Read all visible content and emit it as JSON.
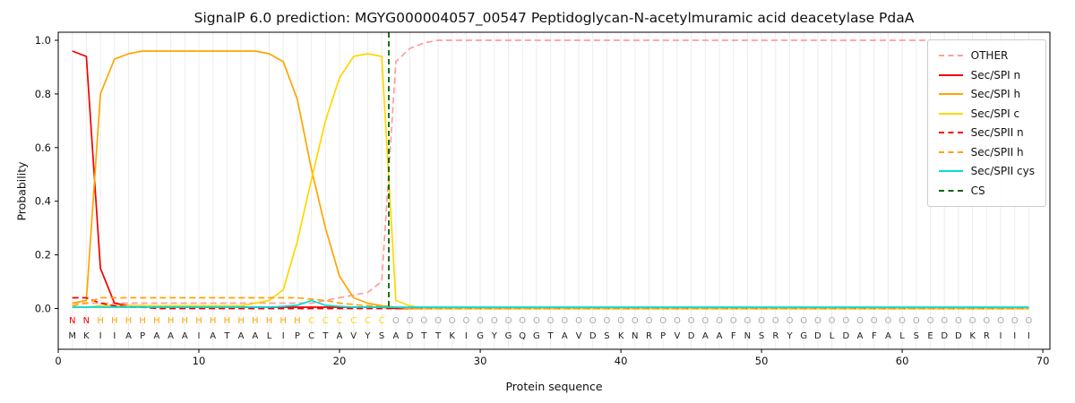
{
  "chart_data": {
    "type": "line",
    "title": "SignalP 6.0 prediction: MGYG000004057_00547 Peptidoglycan-N-acetylmuramic acid deacetylase PdaA",
    "xlabel": "Protein sequence",
    "ylabel": "Probability",
    "xlim": [
      0,
      70.5
    ],
    "ylim": [
      -0.152,
      1.03
    ],
    "xticks": [
      0,
      10,
      20,
      30,
      40,
      50,
      60,
      70
    ],
    "yticks": [
      0,
      0.2,
      0.4,
      0.6,
      0.8,
      1.0
    ],
    "ytick_labels": [
      "0.0",
      "0.2",
      "0.4",
      "0.6",
      "0.8",
      "1.0"
    ],
    "grid": "vertical-per-residue",
    "legend_position": "upper right",
    "cleavage_site": 23.5,
    "sequence": "MKIIAPAAAIATAALIPCTAVYSADTTKIGYGQGTAVDSKNRPVDAAFNSRYGDLDAFALSEDDKRIII",
    "region_labels": "NNHHHHHHHHHHHHHHHCCCCCCOOOOOOOOOOOOOOOOOOOOOOOOOOOOOOOOOOOOOOOOOOOOOO",
    "region_colors": {
      "N": "#f20000",
      "H": "#ffa500",
      "C": "#ffd700",
      "O": "#a8a8a8"
    },
    "series": [
      {
        "name": "OTHER",
        "color": "#ff9d9d",
        "style": "dashed",
        "values": [
          0.02,
          0.02,
          0.02,
          0.02,
          0.02,
          0.02,
          0.02,
          0.02,
          0.02,
          0.02,
          0.02,
          0.02,
          0.02,
          0.02,
          0.02,
          0.02,
          0.02,
          0.02,
          0.03,
          0.04,
          0.05,
          0.06,
          0.1,
          0.92,
          0.97,
          0.99,
          1.0,
          1.0,
          1.0,
          1.0,
          1.0,
          1.0,
          1.0,
          1.0,
          1.0,
          1.0,
          1.0,
          1.0,
          1.0,
          1.0,
          1.0,
          1.0,
          1.0,
          1.0,
          1.0,
          1.0,
          1.0,
          1.0,
          1.0,
          1.0,
          1.0,
          1.0,
          1.0,
          1.0,
          1.0,
          1.0,
          1.0,
          1.0,
          1.0,
          1.0,
          1.0,
          1.0,
          1.0,
          1.0,
          1.0,
          1.0,
          1.0,
          1.0,
          1.0
        ]
      },
      {
        "name": "Sec/SPI n",
        "color": "#f20000",
        "style": "solid",
        "values": [
          0.96,
          0.94,
          0.15,
          0.02,
          0.01,
          0.01,
          0.005,
          0.005,
          0.005,
          0.005,
          0.005,
          0.005,
          0.005,
          0.005,
          0.005,
          0.005,
          0.005,
          0.005,
          0.005,
          0.005,
          0.005,
          0.005,
          0.005,
          0,
          0,
          0,
          0,
          0,
          0,
          0,
          0,
          0,
          0,
          0,
          0,
          0,
          0,
          0,
          0,
          0,
          0,
          0,
          0,
          0,
          0,
          0,
          0,
          0,
          0,
          0,
          0,
          0,
          0,
          0,
          0,
          0,
          0,
          0,
          0,
          0,
          0,
          0,
          0,
          0,
          0,
          0,
          0,
          0,
          0
        ]
      },
      {
        "name": "Sec/SPI h",
        "color": "#ffa500",
        "style": "solid",
        "values": [
          0.02,
          0.03,
          0.8,
          0.93,
          0.95,
          0.96,
          0.96,
          0.96,
          0.96,
          0.96,
          0.96,
          0.96,
          0.96,
          0.96,
          0.95,
          0.92,
          0.78,
          0.52,
          0.3,
          0.12,
          0.04,
          0.02,
          0.01,
          0.005,
          0,
          0,
          0,
          0,
          0,
          0,
          0,
          0,
          0,
          0,
          0,
          0,
          0,
          0,
          0,
          0,
          0,
          0,
          0,
          0,
          0,
          0,
          0,
          0,
          0,
          0,
          0,
          0,
          0,
          0,
          0,
          0,
          0,
          0,
          0,
          0,
          0,
          0,
          0,
          0,
          0,
          0,
          0,
          0,
          0
        ]
      },
      {
        "name": "Sec/SPI c",
        "color": "#ffd700",
        "style": "solid",
        "values": [
          0.005,
          0.005,
          0.01,
          0.01,
          0.01,
          0.01,
          0.01,
          0.01,
          0.01,
          0.01,
          0.01,
          0.01,
          0.01,
          0.02,
          0.03,
          0.07,
          0.25,
          0.48,
          0.7,
          0.86,
          0.94,
          0.95,
          0.94,
          0.03,
          0.01,
          0,
          0,
          0,
          0,
          0,
          0,
          0,
          0,
          0,
          0,
          0,
          0,
          0,
          0,
          0,
          0,
          0,
          0,
          0,
          0,
          0,
          0,
          0,
          0,
          0,
          0,
          0,
          0,
          0,
          0,
          0,
          0,
          0,
          0,
          0,
          0,
          0,
          0,
          0,
          0,
          0,
          0,
          0,
          0
        ]
      },
      {
        "name": "Sec/SPII n",
        "color": "#f20000",
        "style": "dashed",
        "values": [
          0.04,
          0.04,
          0.02,
          0.01,
          0.005,
          0.005,
          0,
          0,
          0,
          0,
          0,
          0,
          0,
          0,
          0,
          0,
          0,
          0,
          0,
          0,
          0,
          0,
          0,
          0,
          0,
          0,
          0,
          0,
          0,
          0,
          0,
          0,
          0,
          0,
          0,
          0,
          0,
          0,
          0,
          0,
          0,
          0,
          0,
          0,
          0,
          0,
          0,
          0,
          0,
          0,
          0,
          0,
          0,
          0,
          0,
          0,
          0,
          0,
          0,
          0,
          0,
          0,
          0,
          0,
          0,
          0,
          0,
          0,
          0
        ]
      },
      {
        "name": "Sec/SPII h",
        "color": "#ffa500",
        "style": "dashed",
        "values": [
          0.01,
          0.02,
          0.04,
          0.04,
          0.04,
          0.04,
          0.04,
          0.04,
          0.04,
          0.04,
          0.04,
          0.04,
          0.04,
          0.04,
          0.04,
          0.04,
          0.04,
          0.035,
          0.03,
          0.02,
          0.015,
          0.01,
          0.01,
          0.005,
          0,
          0,
          0,
          0,
          0,
          0,
          0,
          0,
          0,
          0,
          0,
          0,
          0,
          0,
          0,
          0,
          0,
          0,
          0,
          0,
          0,
          0,
          0,
          0,
          0,
          0,
          0,
          0,
          0,
          0,
          0,
          0,
          0,
          0,
          0,
          0,
          0,
          0,
          0,
          0,
          0,
          0,
          0,
          0,
          0
        ]
      },
      {
        "name": "Sec/SPII cys",
        "color": "#00dcdc",
        "style": "solid",
        "values": [
          0.005,
          0.005,
          0.005,
          0.005,
          0.005,
          0.005,
          0.005,
          0.005,
          0.005,
          0.005,
          0.005,
          0.005,
          0.005,
          0.005,
          0.005,
          0.008,
          0.012,
          0.03,
          0.012,
          0.008,
          0.005,
          0.005,
          0.005,
          0.005,
          0.005,
          0.005,
          0.005,
          0.005,
          0.005,
          0.005,
          0.005,
          0.005,
          0.005,
          0.005,
          0.005,
          0.005,
          0.005,
          0.005,
          0.005,
          0.005,
          0.005,
          0.005,
          0.005,
          0.005,
          0.005,
          0.005,
          0.005,
          0.005,
          0.005,
          0.005,
          0.005,
          0.005,
          0.005,
          0.005,
          0.005,
          0.005,
          0.005,
          0.005,
          0.005,
          0.005,
          0.005,
          0.005,
          0.005,
          0.005,
          0.005,
          0.005,
          0.005,
          0.005,
          0.005
        ]
      },
      {
        "name": "CS",
        "color": "#006400",
        "style": "dashed",
        "x": 23.5
      }
    ]
  }
}
